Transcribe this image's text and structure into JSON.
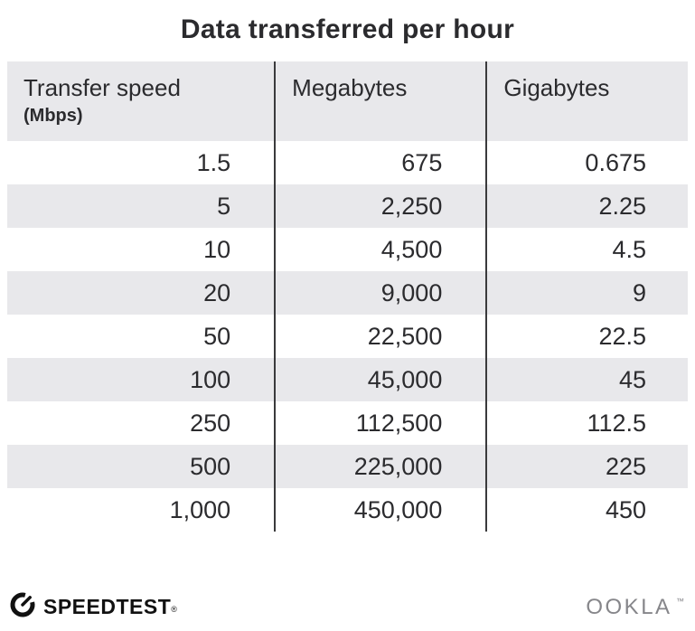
{
  "title": "Data transferred per hour",
  "table": {
    "headers": [
      {
        "label": "Transfer speed",
        "sublabel": "(Mbps)"
      },
      {
        "label": "Megabytes"
      },
      {
        "label": "Gigabytes"
      }
    ],
    "rows": [
      [
        "1.5",
        "675",
        "0.675"
      ],
      [
        "5",
        "2,250",
        "2.25"
      ],
      [
        "10",
        "4,500",
        "4.5"
      ],
      [
        "20",
        "9,000",
        "9"
      ],
      [
        "50",
        "22,500",
        "22.5"
      ],
      [
        "100",
        "45,000",
        "45"
      ],
      [
        "250",
        "112,500",
        "112.5"
      ],
      [
        "500",
        "225,000",
        "225"
      ],
      [
        "1,000",
        "450,000",
        "450"
      ]
    ]
  },
  "chart_data": {
    "type": "table",
    "title": "Data transferred per hour",
    "columns": [
      "Transfer speed (Mbps)",
      "Megabytes",
      "Gigabytes"
    ],
    "rows": [
      [
        1.5,
        675,
        0.675
      ],
      [
        5,
        2250,
        2.25
      ],
      [
        10,
        4500,
        4.5
      ],
      [
        20,
        9000,
        9
      ],
      [
        50,
        22500,
        22.5
      ],
      [
        100,
        45000,
        45
      ],
      [
        250,
        112500,
        112.5
      ],
      [
        500,
        225000,
        225
      ],
      [
        1000,
        450000,
        450
      ]
    ]
  },
  "footer": {
    "left_brand": "SPEEDTEST",
    "left_brand_mark": "®",
    "right_brand": "OOKLA",
    "right_brand_mark": "™"
  },
  "colors": {
    "header_bg": "#e8e8eb",
    "stripe_bg": "#e8e8eb",
    "divider": "#3a3a3c",
    "text": "#2b2b2e",
    "ookla_gray": "#86868a"
  }
}
